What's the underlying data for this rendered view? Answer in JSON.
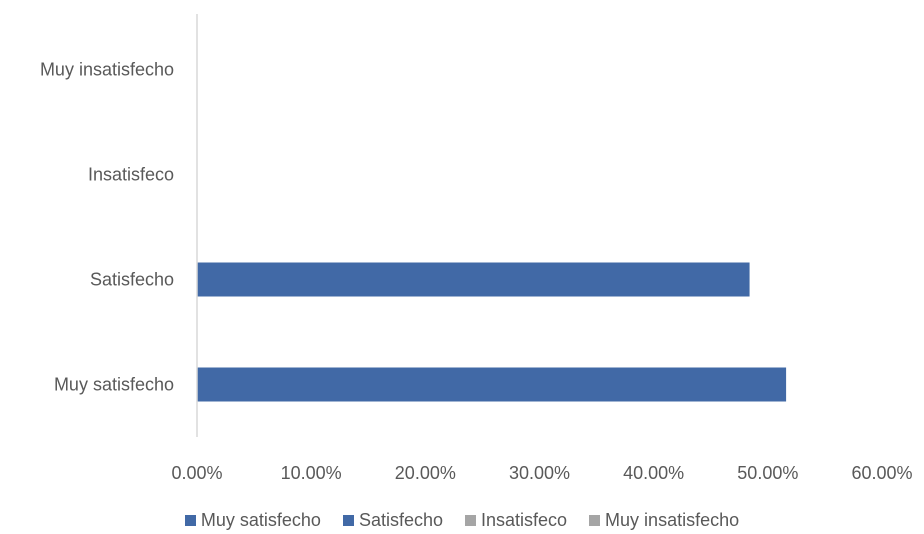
{
  "chart_data": {
    "type": "bar",
    "orientation": "horizontal",
    "categories": [
      "Muy insatisfecho",
      "Insatisfeco",
      "Satisfecho",
      "Muy satisfecho"
    ],
    "values": [
      0,
      0,
      0.484,
      0.516
    ],
    "xlim": [
      0,
      0.6
    ],
    "x_ticks": [
      0,
      0.1,
      0.2,
      0.3,
      0.4,
      0.5,
      0.6
    ],
    "x_tick_labels": [
      "0.00%",
      "10.00%",
      "20.00%",
      "30.00%",
      "40.00%",
      "50.00%",
      "60.00%"
    ],
    "grid": false,
    "legend_position": "bottom",
    "legend": [
      {
        "label": "Muy satisfecho",
        "color": "#4169a6"
      },
      {
        "label": "Satisfecho",
        "color": "#4169a6"
      },
      {
        "label": "Insatisfeco",
        "color": "#a5a5a5"
      },
      {
        "label": "Muy insatisfecho",
        "color": "#a5a5a5"
      }
    ],
    "bar_color": "#4169a6",
    "axis_color": "#d9d9d9"
  }
}
